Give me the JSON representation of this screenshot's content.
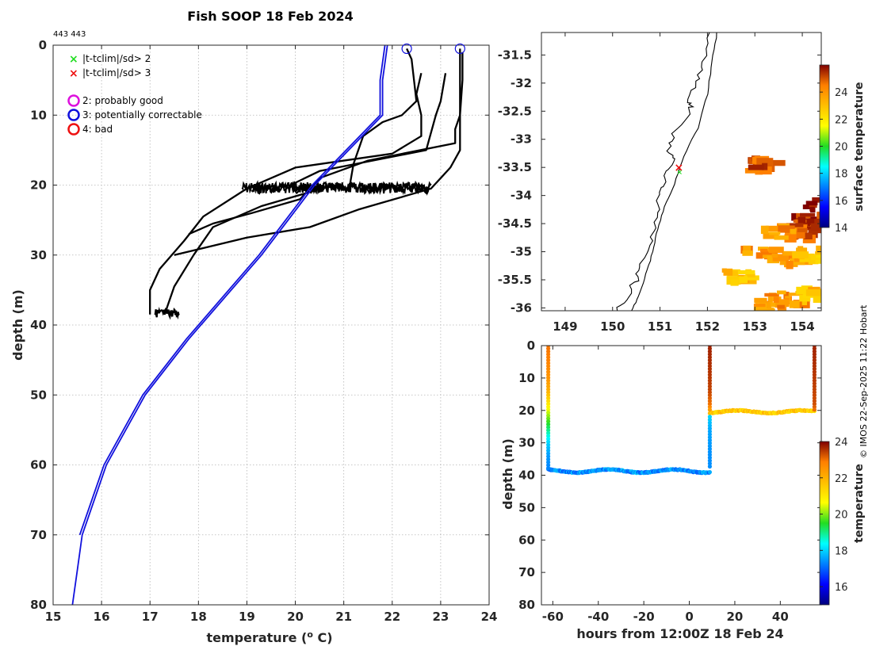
{
  "title": "Fish SOOP 18 Feb 2024",
  "id_label": "443 443",
  "credit": "© IMOS 22-Sep-2025 11:22 Hobart",
  "legend": {
    "flag_items": [
      {
        "symbol": "x",
        "color": "#22dd22",
        "label": "|t-tclim|/sd> 2"
      },
      {
        "symbol": "x",
        "color": "#ee1111",
        "label": "|t-tclim|/sd> 3"
      }
    ],
    "qc_items": [
      {
        "symbol": "o",
        "color": "#dd11dd",
        "label": "2: probably good"
      },
      {
        "symbol": "o",
        "color": "#1111dd",
        "label": "3: potentially correctable"
      },
      {
        "symbol": "o",
        "color": "#ee1111",
        "label": "4: bad"
      }
    ]
  },
  "chart_data": [
    {
      "type": "line",
      "name": "profile",
      "xlabel": "temperature (",
      "xlabel_unit_sup": "o",
      "xlabel_unit": " C)",
      "ylabel": "depth (m)",
      "xlim": [
        15,
        24
      ],
      "ylim": [
        0,
        80
      ],
      "y_reversed": true,
      "xticks": [
        15,
        16,
        17,
        18,
        19,
        20,
        21,
        22,
        23,
        24
      ],
      "yticks": [
        0,
        10,
        20,
        30,
        40,
        50,
        60,
        70,
        80
      ],
      "grid": true,
      "climatology": {
        "color": "#1111dd",
        "upper": [
          [
            21.9,
            0
          ],
          [
            21.8,
            5
          ],
          [
            21.8,
            10
          ],
          [
            20.4,
            20
          ],
          [
            19.3,
            30
          ],
          [
            17.8,
            42
          ],
          [
            16.9,
            50
          ],
          [
            16.1,
            60
          ],
          [
            15.6,
            70
          ],
          [
            15.5,
            75
          ],
          [
            15.4,
            80
          ]
        ],
        "lower": [
          [
            21.85,
            0
          ],
          [
            21.75,
            5
          ],
          [
            21.75,
            10
          ],
          [
            20.35,
            20
          ],
          [
            19.25,
            30
          ],
          [
            17.75,
            42
          ],
          [
            16.85,
            50
          ],
          [
            16.05,
            60
          ],
          [
            15.55,
            70
          ]
        ]
      },
      "profiles": [
        {
          "color": "#000000",
          "points": [
            [
              22.3,
              0.5
            ],
            [
              22.4,
              2
            ],
            [
              22.5,
              8
            ],
            [
              22.2,
              10
            ],
            [
              21.8,
              11
            ],
            [
              21.4,
              13
            ],
            [
              21.2,
              17
            ],
            [
              21.1,
              21
            ]
          ]
        },
        {
          "color": "#000000",
          "points": [
            [
              22.6,
              4
            ],
            [
              22.5,
              7
            ],
            [
              22.6,
              10
            ],
            [
              22.6,
              13
            ],
            [
              22.0,
              15.5
            ],
            [
              20.0,
              17.5
            ],
            [
              19.0,
              20.5
            ],
            [
              18.1,
              24.5
            ],
            [
              17.7,
              28
            ],
            [
              17.2,
              32
            ],
            [
              17.0,
              35
            ],
            [
              17.0,
              38.5
            ]
          ]
        },
        {
          "color": "#000000",
          "points": [
            [
              23.1,
              4
            ],
            [
              23.0,
              8
            ],
            [
              22.9,
              10
            ],
            [
              22.7,
              15
            ],
            [
              20.5,
              18
            ],
            [
              19.9,
              20
            ],
            [
              20.3,
              21
            ],
            [
              19.3,
              23
            ],
            [
              18.3,
              26
            ],
            [
              17.9,
              30
            ],
            [
              17.5,
              34.5
            ],
            [
              17.3,
              38.5
            ]
          ]
        },
        {
          "color": "#000000",
          "points": [
            [
              23.4,
              0.5
            ],
            [
              23.4,
              3
            ],
            [
              23.4,
              10
            ],
            [
              23.3,
              12
            ],
            [
              23.3,
              14
            ],
            [
              21.5,
              16.5
            ],
            [
              20.5,
              19
            ],
            [
              20.1,
              22
            ],
            [
              19.1,
              24
            ],
            [
              18.3,
              25.5
            ],
            [
              17.8,
              27
            ]
          ]
        },
        {
          "color": "#000000",
          "points": [
            [
              23.45,
              1
            ],
            [
              23.45,
              5
            ],
            [
              23.4,
              10
            ],
            [
              23.4,
              15
            ],
            [
              23.2,
              17.5
            ],
            [
              23.0,
              19
            ],
            [
              22.8,
              20.5
            ],
            [
              22.3,
              21.5
            ],
            [
              21.3,
              23.5
            ],
            [
              20.3,
              26
            ],
            [
              19.0,
              27.5
            ],
            [
              17.5,
              30
            ]
          ]
        }
      ],
      "noisy_band": {
        "x_from": 18.9,
        "x_to": 22.8,
        "y_center": 20.4,
        "color": "#000000"
      },
      "bottom_cluster": {
        "x_from": 17.1,
        "x_to": 17.6,
        "y_center": 38.3,
        "color": "#000000"
      },
      "qc_markers": [
        {
          "x": 22.3,
          "y": 0.5,
          "flag": 3
        },
        {
          "x": 23.4,
          "y": 0.5,
          "flag": 3
        }
      ]
    },
    {
      "type": "heatmap",
      "name": "map",
      "xlim": [
        148.5,
        154.4
      ],
      "ylim": [
        -36.05,
        -31.1
      ],
      "xticks": [
        149,
        150,
        151,
        152,
        153,
        154
      ],
      "yticks": [
        -31.5,
        -32,
        -32.5,
        -33,
        -33.5,
        -34,
        -34.5,
        -35,
        -35.5,
        -36
      ],
      "colorbar": {
        "label": "surface temperature",
        "range": [
          14,
          26
        ],
        "ticks": [
          14,
          16,
          18,
          20,
          22,
          24
        ]
      },
      "position_marker": {
        "lon": 151.4,
        "lat": -33.5
      },
      "sst_patches": [
        {
          "lon": 154.0,
          "lat": -34.4,
          "value": 25.5
        },
        {
          "lon": 153.9,
          "lat": -34.6,
          "value": 25
        },
        {
          "lon": 154.3,
          "lat": -34.1,
          "value": 26
        },
        {
          "lon": 153.4,
          "lat": -34.6,
          "value": 24
        },
        {
          "lon": 153.0,
          "lat": -35.0,
          "value": 24
        },
        {
          "lon": 153.6,
          "lat": -35.1,
          "value": 24
        },
        {
          "lon": 154.1,
          "lat": -35.0,
          "value": 23
        },
        {
          "lon": 152.6,
          "lat": -35.4,
          "value": 23
        },
        {
          "lon": 153.5,
          "lat": -35.8,
          "value": 24
        },
        {
          "lon": 154.1,
          "lat": -35.7,
          "value": 23
        },
        {
          "lon": 153.2,
          "lat": -35.9,
          "value": 24
        },
        {
          "lon": 153.1,
          "lat": -33.4,
          "value": 25
        }
      ]
    },
    {
      "type": "scatter",
      "name": "section",
      "xlabel": "hours from 12:00Z 18 Feb 24",
      "ylabel": "depth (m)",
      "xlim": [
        -65,
        58
      ],
      "ylim": [
        0,
        80
      ],
      "y_reversed": true,
      "xticks": [
        -60,
        -40,
        -20,
        0,
        20,
        40
      ],
      "yticks": [
        0,
        10,
        20,
        30,
        40,
        50,
        60,
        70,
        80
      ],
      "colorbar": {
        "label": "temperature",
        "range": [
          15,
          24
        ],
        "ticks": [
          16,
          18,
          20,
          22,
          24
        ]
      },
      "casts": [
        {
          "x": -62,
          "profile": [
            [
              0,
              23.0
            ],
            [
              5,
              22.8
            ],
            [
              10,
              22.5
            ],
            [
              14,
              22.0
            ],
            [
              18,
              21.0
            ],
            [
              22,
              20.0
            ],
            [
              26,
              19.0
            ],
            [
              30,
              18.0
            ],
            [
              34,
              17.5
            ],
            [
              38,
              17.3
            ]
          ]
        },
        {
          "x": 9,
          "profile": [
            [
              0,
              23.7
            ],
            [
              5,
              23.6
            ],
            [
              10,
              23.5
            ],
            [
              14,
              23.4
            ],
            [
              18,
              23.0
            ],
            [
              20,
              22.3
            ]
          ]
        },
        {
          "x": 9,
          "profile_lower": [
            [
              22,
              18.0
            ],
            [
              26,
              17.6
            ],
            [
              30,
              17.5
            ],
            [
              34,
              17.4
            ],
            [
              38,
              17.4
            ]
          ]
        },
        {
          "x": 55,
          "profile": [
            [
              0,
              23.7
            ],
            [
              5,
              23.6
            ],
            [
              10,
              23.5
            ],
            [
              14,
              23.4
            ],
            [
              18,
              23.3
            ],
            [
              20,
              23.0
            ]
          ]
        }
      ],
      "tows": [
        {
          "x_from": -62,
          "x_to": 9,
          "depth": 38.7,
          "amplitude": 0.5,
          "value": 17.4
        },
        {
          "x_from": 9,
          "x_to": 55,
          "depth": 20.4,
          "amplitude": 0.4,
          "value": 21.6
        }
      ]
    }
  ]
}
